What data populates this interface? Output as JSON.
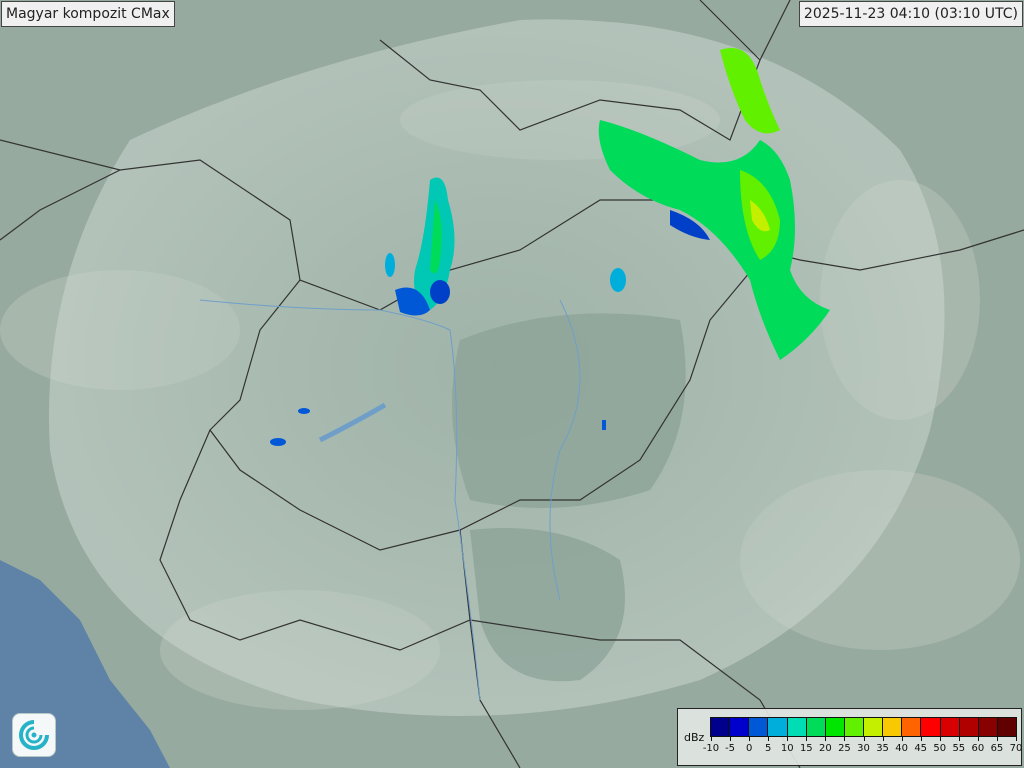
{
  "header": {
    "title": "Magyar kompozit  CMax",
    "timestamp": "2025-11-23 04:10 (03:10 UTC)"
  },
  "legend": {
    "unit": "dBz",
    "ticks": [
      "-10",
      "-5",
      "0",
      "5",
      "10",
      "15",
      "20",
      "25",
      "30",
      "35",
      "40",
      "45",
      "50",
      "55",
      "60",
      "65",
      "70"
    ],
    "colors": [
      "#00008c",
      "#0000cc",
      "#0058d6",
      "#00aedc",
      "#00dcb4",
      "#00dc5a",
      "#00e600",
      "#60f000",
      "#c4f000",
      "#f8c800",
      "#ff6400",
      "#ff0000",
      "#d80000",
      "#b00000",
      "#880000",
      "#600000"
    ]
  },
  "logo": {
    "icon": "met-service-swirl-icon"
  }
}
